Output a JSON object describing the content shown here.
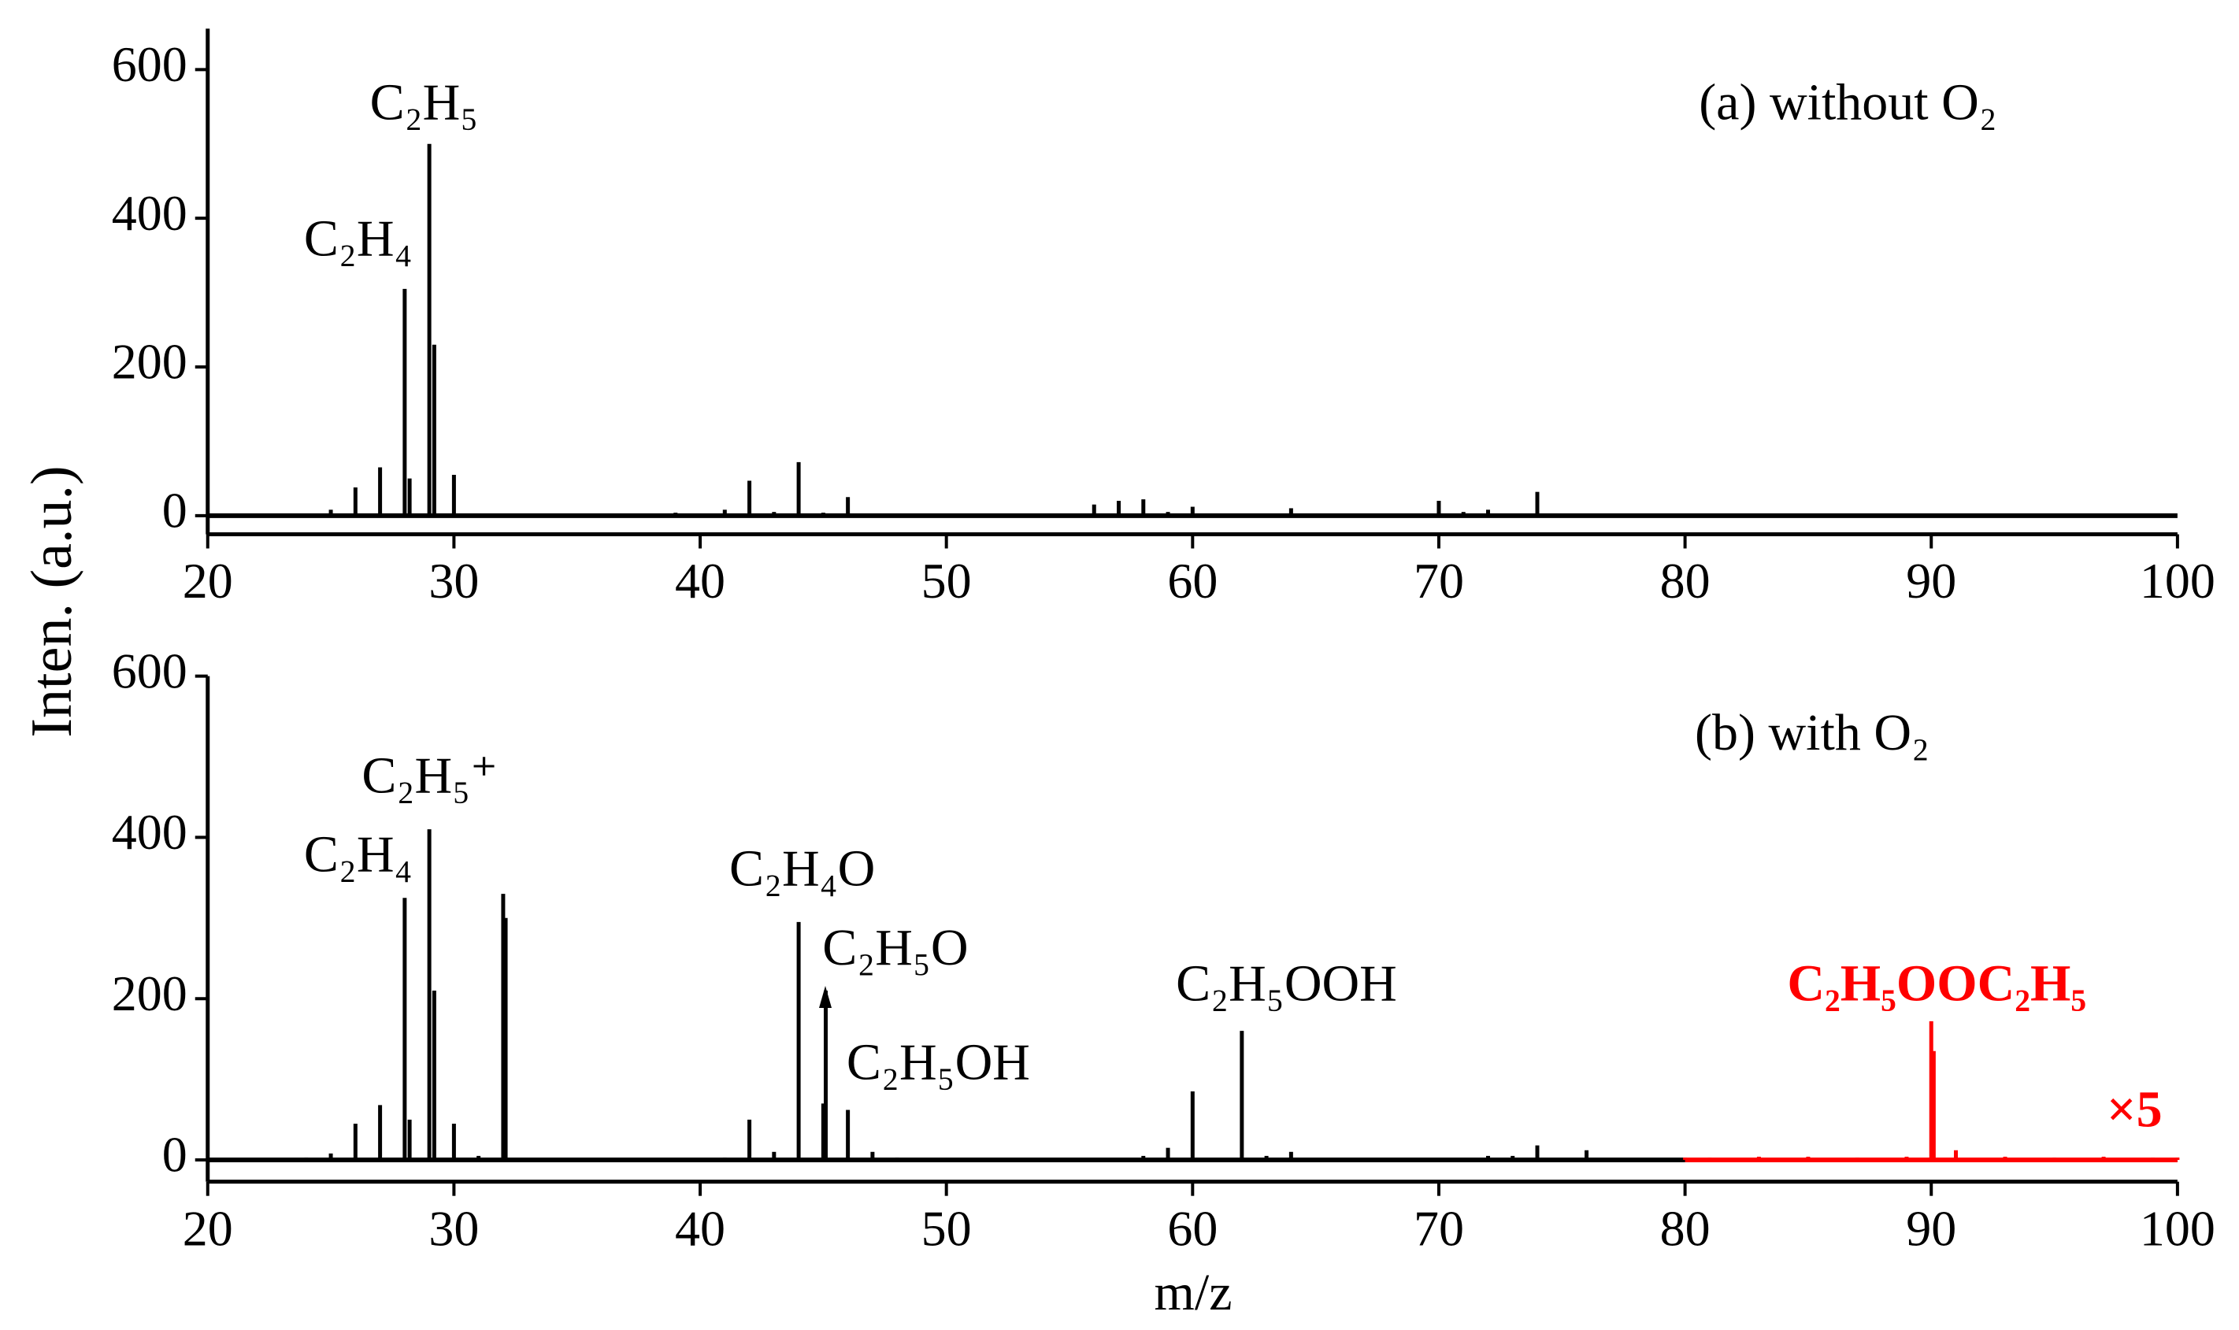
{
  "chart_data": [
    {
      "type": "stick",
      "title": "(a) without O₂",
      "ylabel": "Inten. (a.u.)",
      "xlim": [
        20,
        100
      ],
      "xticks": [
        20,
        30,
        40,
        50,
        60,
        70,
        80,
        90,
        100
      ],
      "ylim": [
        -25,
        655
      ],
      "yticks": [
        0,
        200,
        400,
        600
      ],
      "series": [
        {
          "name": "without O₂",
          "color": "#000000",
          "x": [
            25,
            26,
            27,
            28,
            28.2,
            29,
            29.2,
            30,
            39,
            41,
            42,
            43,
            44,
            45,
            46,
            56,
            57,
            58,
            59,
            60,
            64,
            70,
            71,
            72,
            74,
            86
          ],
          "values": [
            8,
            38,
            65,
            305,
            50,
            500,
            230,
            55,
            4,
            8,
            47,
            5,
            72,
            4,
            25,
            15,
            20,
            22,
            5,
            12,
            10,
            20,
            5,
            8,
            32,
            3
          ]
        }
      ],
      "annotations": [
        {
          "text": "C₂H₄"
        },
        {
          "text": "C₂H₅"
        }
      ]
    },
    {
      "type": "stick",
      "title": "(b) with O₂",
      "xlabel": "m/z",
      "xlim": [
        20,
        100
      ],
      "xticks": [
        20,
        30,
        40,
        50,
        60,
        70,
        80,
        90,
        100
      ],
      "ylim": [
        -27,
        600
      ],
      "yticks": [
        0,
        200,
        400,
        600
      ],
      "series": [
        {
          "name": "with O₂",
          "color": "#000000",
          "x": [
            24,
            25,
            26,
            27,
            28,
            28.2,
            29,
            29.2,
            30,
            31,
            32,
            32.1,
            41,
            42,
            43,
            44,
            45,
            45.1,
            46,
            47,
            48,
            58,
            59,
            60,
            62,
            63,
            64,
            72,
            73,
            74,
            76
          ],
          "values": [
            3,
            8,
            45,
            68,
            325,
            50,
            410,
            210,
            45,
            5,
            330,
            300,
            3,
            50,
            10,
            295,
            70,
            210,
            62,
            10,
            3,
            5,
            15,
            85,
            160,
            5,
            10,
            5,
            5,
            18,
            12
          ]
        },
        {
          "name": "×5",
          "color": "#ff0000",
          "x": [
            80,
            81,
            83,
            85,
            87,
            89,
            90,
            90.1,
            91,
            93,
            95,
            97,
            99,
            100
          ],
          "values": [
            3,
            3,
            4,
            4,
            3,
            4,
            172,
            135,
            12,
            4,
            3,
            4,
            3,
            3
          ]
        }
      ],
      "annotations": [
        {
          "text": "C₂H₄"
        },
        {
          "text": "C₂H₅⁺"
        },
        {
          "text": "C₂H₄O"
        },
        {
          "text": "C₂H₅O"
        },
        {
          "text": "C₂H₅OH"
        },
        {
          "text": "C₂H₅OOH"
        },
        {
          "text": "C₂H₅OOC₂H₅",
          "color": "#ff0000",
          "font_weight": "bold"
        },
        {
          "text": "×5",
          "color": "#ff0000",
          "font_weight": "bold"
        }
      ]
    }
  ]
}
